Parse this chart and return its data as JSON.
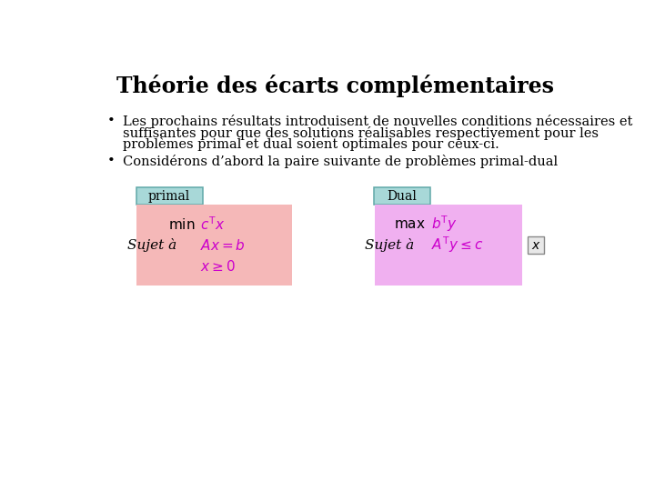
{
  "title": "Théorie des écarts complémentaires",
  "title_fontsize": 17,
  "background_color": "#ffffff",
  "bullet1_line1": "Les prochains résultats introduisent de nouvelles conditions nécessaires et",
  "bullet1_line2": "suffisantes pour que des solutions réalisables respectivement pour les",
  "bullet1_line3": "problèmes primal et dual soient optimales pour ceux-ci.",
  "bullet2": "Considérons d’abord la paire suivante de problèmes primal-dual",
  "primal_label": "primal",
  "dual_label": "Dual",
  "primal_box_color": "#f5b8b8",
  "dual_box_color": "#f0b0f0",
  "label_box_color": "#a8d8d8",
  "label_edge_color": "#60a8a8",
  "x_box_edge_color": "#888888",
  "x_box_face_color": "#e8e8e8",
  "text_color": "#000000",
  "math_color": "#cc00cc",
  "font_family": "serif",
  "text_fontsize": 10.5,
  "label_fontsize": 10,
  "math_fontsize": 11
}
